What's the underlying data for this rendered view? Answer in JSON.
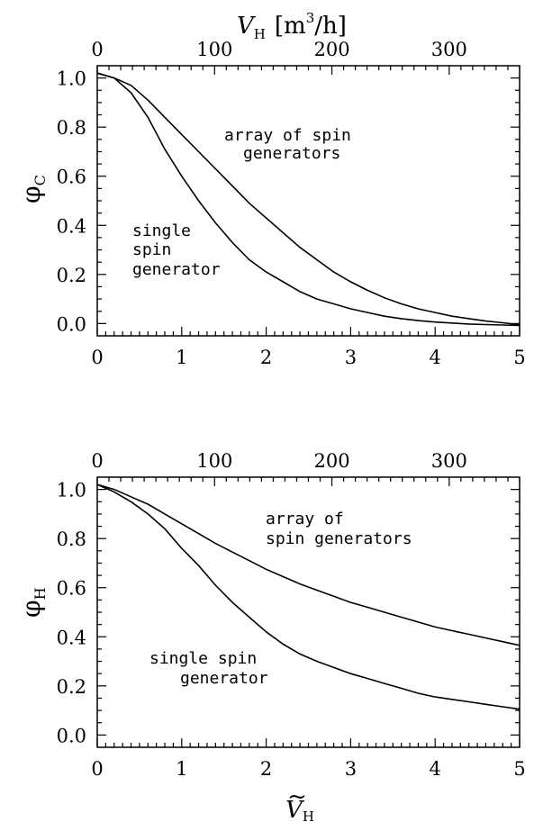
{
  "chart_data": [
    {
      "type": "line",
      "ylabel": "φ",
      "ylabel_sub": "C",
      "top_xlabel": "V",
      "top_xlabel_sub": "H",
      "top_xlabel_unit": "[m",
      "top_xlabel_unit_sup": "3",
      "top_xlabel_unit_end": "/h]",
      "xlim": [
        0,
        5
      ],
      "ylim": [
        -0.05,
        1.05
      ],
      "top_xlim": [
        0,
        360
      ],
      "x_ticks": [
        "0",
        "1",
        "2",
        "3",
        "4",
        "5"
      ],
      "y_ticks": [
        "0.0",
        "0.2",
        "0.4",
        "0.6",
        "0.8",
        "1.0"
      ],
      "top_ticks": [
        "0",
        "100",
        "200",
        "300"
      ],
      "annotations": [
        {
          "lines": [
            "array of spin",
            "generators"
          ]
        },
        {
          "lines": [
            "single",
            "spin",
            "generator"
          ]
        }
      ],
      "series": [
        {
          "x": [
            0,
            0.2,
            0.4,
            0.6,
            0.8,
            1.0,
            1.2,
            1.4,
            1.6,
            1.8,
            2.0,
            2.2,
            2.4,
            2.6,
            2.8,
            3.0,
            3.2,
            3.4,
            3.6,
            3.8,
            4.0,
            4.2,
            4.4,
            4.6,
            4.8,
            5.0
          ],
          "y": [
            1.02,
            1.0,
            0.97,
            0.91,
            0.84,
            0.77,
            0.7,
            0.63,
            0.56,
            0.49,
            0.43,
            0.37,
            0.31,
            0.26,
            0.21,
            0.17,
            0.135,
            0.105,
            0.08,
            0.06,
            0.045,
            0.03,
            0.02,
            0.01,
            0.003,
            -0.005
          ]
        },
        {
          "x": [
            0,
            0.2,
            0.4,
            0.6,
            0.8,
            1.0,
            1.2,
            1.4,
            1.6,
            1.8,
            2.0,
            2.2,
            2.4,
            2.6,
            2.8,
            3.0,
            3.2,
            3.4,
            3.6,
            3.8,
            4.0,
            4.2,
            4.4,
            4.6,
            4.8,
            5.0
          ],
          "y": [
            1.02,
            1.0,
            0.94,
            0.84,
            0.71,
            0.6,
            0.5,
            0.41,
            0.33,
            0.26,
            0.21,
            0.17,
            0.13,
            0.1,
            0.08,
            0.06,
            0.045,
            0.03,
            0.02,
            0.012,
            0.006,
            0.002,
            -0.002,
            -0.004,
            -0.006,
            -0.008
          ]
        }
      ]
    },
    {
      "type": "line",
      "ylabel": "φ",
      "ylabel_sub": "H",
      "xlabel": "V",
      "xlabel_accent": "~",
      "xlabel_sub": "H",
      "xlim": [
        0,
        5
      ],
      "ylim": [
        -0.05,
        1.05
      ],
      "top_xlim": [
        0,
        360
      ],
      "x_ticks": [
        "0",
        "1",
        "2",
        "3",
        "4",
        "5"
      ],
      "y_ticks": [
        "0.0",
        "0.2",
        "0.4",
        "0.6",
        "0.8",
        "1.0"
      ],
      "top_ticks": [
        "0",
        "100",
        "200",
        "300"
      ],
      "annotations": [
        {
          "lines": [
            "array of",
            "spin generators"
          ]
        },
        {
          "lines": [
            "single spin",
            "generator"
          ]
        }
      ],
      "series": [
        {
          "x": [
            0,
            0.2,
            0.4,
            0.6,
            0.8,
            1.0,
            1.2,
            1.4,
            1.6,
            1.8,
            2.0,
            2.2,
            2.4,
            2.6,
            2.8,
            3.0,
            3.2,
            3.4,
            3.6,
            3.8,
            4.0,
            4.2,
            4.4,
            4.6,
            4.8,
            5.0
          ],
          "y": [
            1.02,
            1.0,
            0.97,
            0.94,
            0.9,
            0.86,
            0.82,
            0.78,
            0.745,
            0.71,
            0.675,
            0.645,
            0.615,
            0.59,
            0.565,
            0.54,
            0.52,
            0.5,
            0.48,
            0.46,
            0.44,
            0.425,
            0.41,
            0.395,
            0.38,
            0.365
          ]
        },
        {
          "x": [
            0,
            0.2,
            0.4,
            0.6,
            0.8,
            1.0,
            1.2,
            1.4,
            1.6,
            1.8,
            2.0,
            2.2,
            2.4,
            2.6,
            2.8,
            3.0,
            3.2,
            3.4,
            3.6,
            3.8,
            4.0,
            4.2,
            4.4,
            4.6,
            4.8,
            5.0
          ],
          "y": [
            1.02,
            0.99,
            0.95,
            0.9,
            0.84,
            0.76,
            0.69,
            0.61,
            0.54,
            0.48,
            0.42,
            0.37,
            0.33,
            0.3,
            0.275,
            0.25,
            0.23,
            0.21,
            0.19,
            0.17,
            0.155,
            0.145,
            0.135,
            0.125,
            0.115,
            0.105
          ]
        }
      ]
    }
  ]
}
